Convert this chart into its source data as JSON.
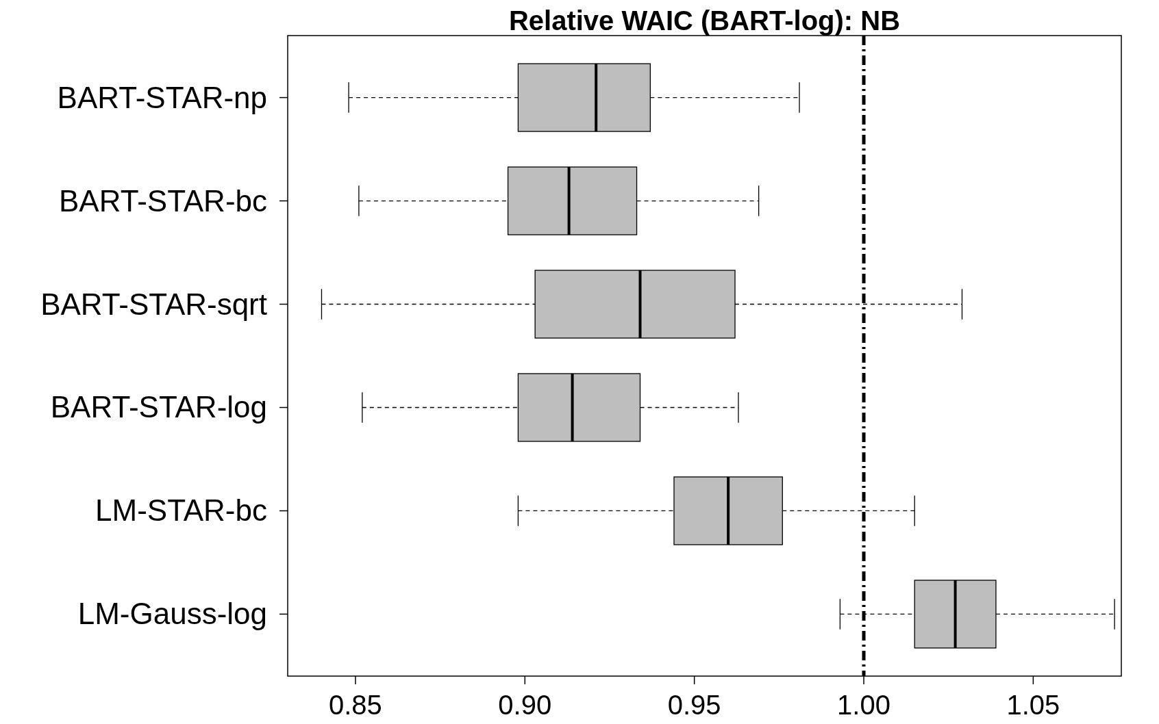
{
  "chart_data": {
    "type": "box",
    "orientation": "horizontal",
    "title": "Relative WAIC (BART-log): NB",
    "categories": [
      "BART-STAR-np",
      "BART-STAR-bc",
      "BART-STAR-sqrt",
      "BART-STAR-log",
      "LM-STAR-bc",
      "LM-Gauss-log"
    ],
    "boxes": [
      {
        "low": 0.848,
        "q1": 0.898,
        "median": 0.921,
        "q3": 0.937,
        "high": 0.981
      },
      {
        "low": 0.851,
        "q1": 0.895,
        "median": 0.913,
        "q3": 0.933,
        "high": 0.969
      },
      {
        "low": 0.84,
        "q1": 0.903,
        "median": 0.934,
        "q3": 0.962,
        "high": 1.029
      },
      {
        "low": 0.852,
        "q1": 0.898,
        "median": 0.914,
        "q3": 0.934,
        "high": 0.963
      },
      {
        "low": 0.898,
        "q1": 0.944,
        "median": 0.96,
        "q3": 0.976,
        "high": 1.015
      },
      {
        "low": 0.993,
        "q1": 1.015,
        "median": 1.027,
        "q3": 1.039,
        "high": 1.074
      }
    ],
    "color": "#bebebe",
    "xlim": [
      0.83,
      1.076
    ],
    "xticks": [
      0.85,
      {
        "value": 0.9,
        "label": "0.90"
      },
      0.95,
      {
        "value": 1,
        "label": "1.00"
      },
      1.05
    ],
    "ref_lines": [
      {
        "axis": "x",
        "value": 1,
        "line_style": "dashdot",
        "color": "#000000"
      }
    ],
    "grid": false
  }
}
